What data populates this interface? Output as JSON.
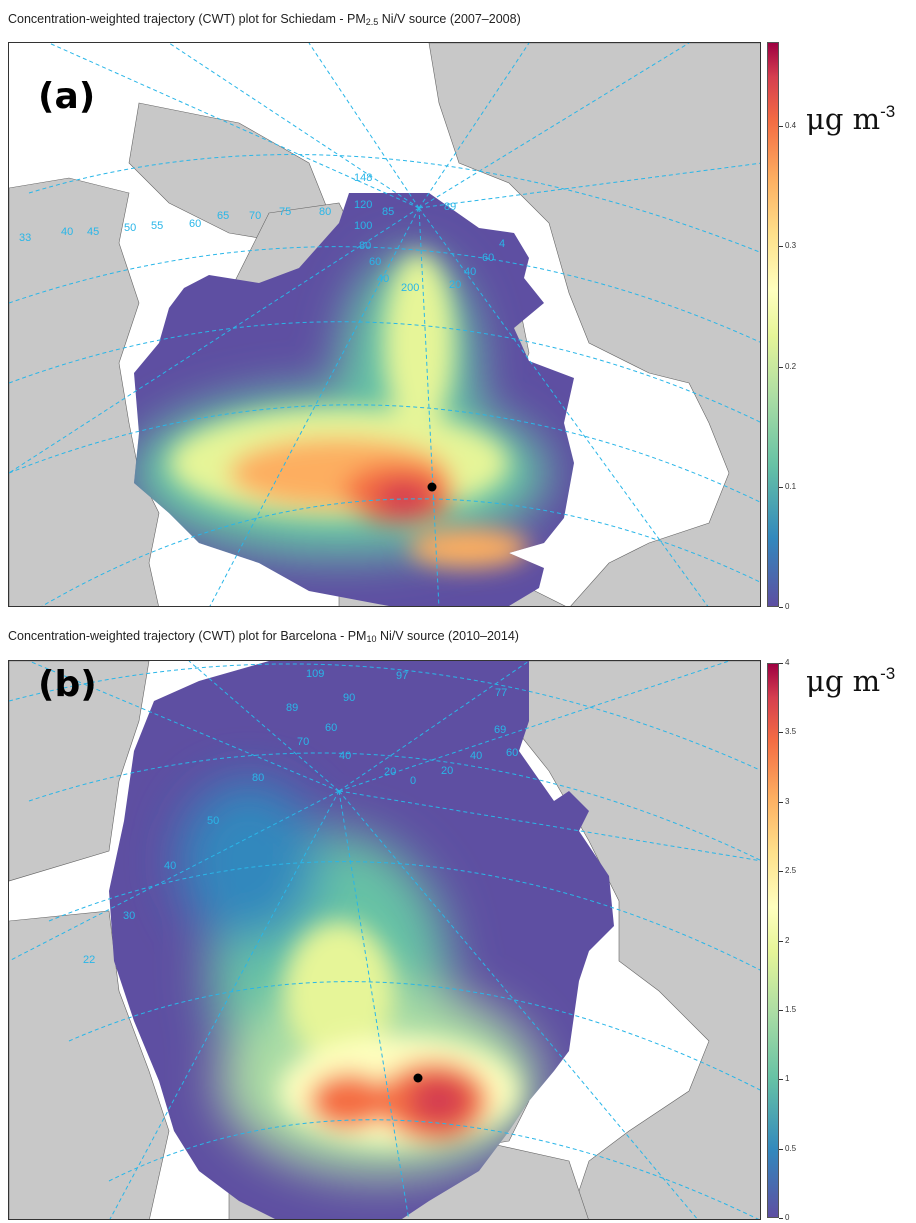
{
  "panels": [
    {
      "id": "a",
      "title": {
        "prefix": "Concentration-weighted trajectory (CWT) plot for Schiedam - PM",
        "pm_sub": "2.5",
        "suffix": " Ni/V source (2007–2008)"
      },
      "panel_label": "(a)",
      "unit": {
        "base": "μg m",
        "exp": "-3"
      },
      "colorbar": {
        "min": 0,
        "max": 0.47,
        "ticks": [
          "0",
          "0.1",
          "0.2",
          "0.3",
          "0.4"
        ],
        "tick_values": [
          0,
          0.1,
          0.2,
          0.3,
          0.4
        ]
      },
      "receptor": "Schiedam",
      "grid_labels": [
        "148",
        "120",
        "100",
        "85",
        "80",
        "60",
        "40",
        "200",
        "20",
        "40",
        "60",
        "89",
        "4",
        "33",
        "40",
        "45",
        "50",
        "55",
        "60",
        "65",
        "70",
        "75",
        "80"
      ]
    },
    {
      "id": "b",
      "title": {
        "prefix": "Concentration-weighted trajectory (CWT) plot for Barcelona - PM",
        "pm_sub": "10",
        "suffix": " Ni/V source (2010–2014)"
      },
      "panel_label": "(b)",
      "unit": {
        "base": "μg m",
        "exp": "-3"
      },
      "colorbar": {
        "min": 0,
        "max": 4,
        "ticks": [
          "0",
          "0.5",
          "1",
          "1.5",
          "2",
          "2.5",
          "3",
          "3.5",
          "4"
        ],
        "tick_values": [
          0,
          0.5,
          1,
          1.5,
          2,
          2.5,
          3,
          3.5,
          4
        ]
      },
      "receptor": "Barcelona",
      "grid_labels": [
        "109",
        "97",
        "90",
        "89",
        "77",
        "70",
        "60",
        "80",
        "69",
        "60",
        "40",
        "20",
        "0",
        "20",
        "40",
        "50",
        "40",
        "30",
        "22"
      ]
    }
  ],
  "colors": {
    "land": "#c8c8c8",
    "ocean": "#ffffff",
    "grid": "#29b6e8",
    "boundary": "#555555",
    "low": "#5e4fa2",
    "high": "#9e0142"
  }
}
